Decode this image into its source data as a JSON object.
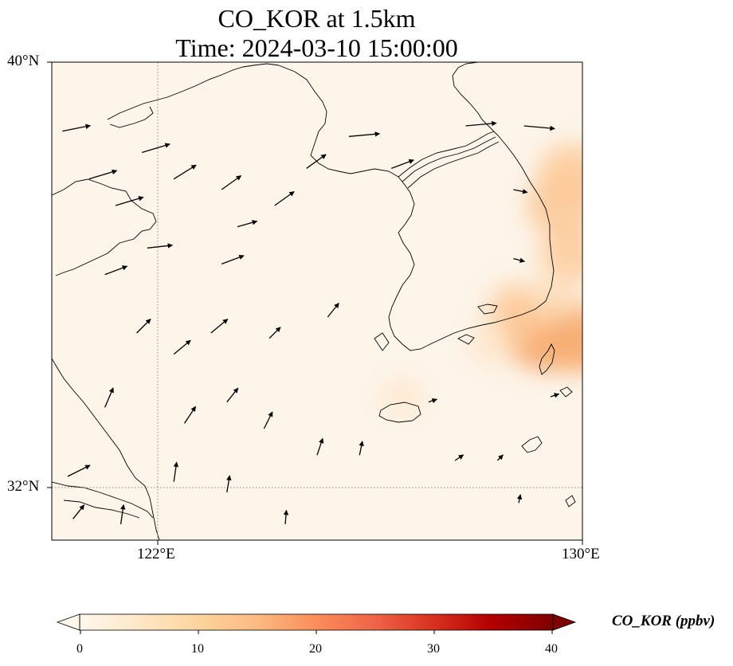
{
  "title": {
    "line1": "CO_KOR at 1.5km",
    "line2": "Time: 2024-03-10 15:00:00"
  },
  "axes": {
    "lat_labels": [
      "40°N",
      "32°N"
    ],
    "lon_labels": [
      "122°E",
      "130°E"
    ],
    "lon_range": [
      120,
      130
    ],
    "lat_range": [
      31,
      40
    ],
    "gridlines": {
      "lons": [
        122,
        130
      ],
      "lats": [
        32,
        40
      ],
      "style": "dotted"
    }
  },
  "colorbar": {
    "title": "CO_KOR (ppbv)",
    "ticks": [
      "0",
      "10",
      "20",
      "30",
      "40"
    ],
    "range": [
      0,
      40
    ],
    "colormap": "OrRd",
    "extend": "both"
  },
  "colors": {
    "background_field": "#fdf5ea",
    "coast": "#000000",
    "plume_light": "#fde2c2",
    "plume_mid": "#fcc896",
    "plume_high": "#f7ae74"
  },
  "chart_data": {
    "type": "map",
    "variable": "CO_KOR",
    "units": "ppbv",
    "level": "1.5km",
    "time": "2024-03-10 15:00:00",
    "plume_cells": [
      {
        "lon": 129.9,
        "lat": 34.8,
        "value": 14
      },
      {
        "lon": 129.3,
        "lat": 34.9,
        "value": 16
      },
      {
        "lon": 128.8,
        "lat": 35.3,
        "value": 10
      },
      {
        "lon": 129.5,
        "lat": 35.6,
        "value": 8
      },
      {
        "lon": 129.8,
        "lat": 36.4,
        "value": 10
      },
      {
        "lon": 129.6,
        "lat": 37.3,
        "value": 12
      },
      {
        "lon": 129.8,
        "lat": 37.9,
        "value": 11
      },
      {
        "lon": 128.3,
        "lat": 34.7,
        "value": 6
      },
      {
        "lon": 126.6,
        "lat": 33.7,
        "value": 4
      }
    ],
    "wind_vectors": [
      {
        "lon": 120.2,
        "lat": 38.7,
        "u": 5,
        "v": 1
      },
      {
        "lon": 120.7,
        "lat": 37.8,
        "u": 5,
        "v": 1.5
      },
      {
        "lon": 121.7,
        "lat": 38.3,
        "u": 5,
        "v": 1.5
      },
      {
        "lon": 122.3,
        "lat": 37.8,
        "u": 4,
        "v": 2.5
      },
      {
        "lon": 121.2,
        "lat": 37.3,
        "u": 5,
        "v": 1.5
      },
      {
        "lon": 121.8,
        "lat": 36.5,
        "u": 4.5,
        "v": 0.5
      },
      {
        "lon": 121.0,
        "lat": 36.0,
        "u": 4,
        "v": 1.5
      },
      {
        "lon": 123.2,
        "lat": 37.6,
        "u": 3.5,
        "v": 2.5
      },
      {
        "lon": 123.5,
        "lat": 36.9,
        "u": 3.5,
        "v": 1
      },
      {
        "lon": 124.2,
        "lat": 37.3,
        "u": 3.5,
        "v": 2.5
      },
      {
        "lon": 123.2,
        "lat": 36.2,
        "u": 4,
        "v": 1.5
      },
      {
        "lon": 124.8,
        "lat": 38.0,
        "u": 3.5,
        "v": 2.5
      },
      {
        "lon": 125.6,
        "lat": 38.6,
        "u": 5.5,
        "v": 0.5
      },
      {
        "lon": 126.4,
        "lat": 38.0,
        "u": 4,
        "v": 1.5
      },
      {
        "lon": 127.8,
        "lat": 38.8,
        "u": 5.5,
        "v": 0.5
      },
      {
        "lon": 128.9,
        "lat": 38.8,
        "u": 5.5,
        "v": -0.5
      },
      {
        "lon": 128.7,
        "lat": 37.6,
        "u": 2.5,
        "v": -0.5
      },
      {
        "lon": 128.7,
        "lat": 36.3,
        "u": 2,
        "v": -0.5
      },
      {
        "lon": 121.6,
        "lat": 34.9,
        "u": 2.5,
        "v": 2.5
      },
      {
        "lon": 122.3,
        "lat": 34.5,
        "u": 3,
        "v": 2.5
      },
      {
        "lon": 123.0,
        "lat": 34.9,
        "u": 3,
        "v": 2.5
      },
      {
        "lon": 124.1,
        "lat": 34.8,
        "u": 2,
        "v": 2
      },
      {
        "lon": 125.2,
        "lat": 35.2,
        "u": 2,
        "v": 2.5
      },
      {
        "lon": 121.0,
        "lat": 33.5,
        "u": 1.5,
        "v": 3.5
      },
      {
        "lon": 122.5,
        "lat": 33.2,
        "u": 2,
        "v": 3
      },
      {
        "lon": 123.3,
        "lat": 33.6,
        "u": 2,
        "v": 2.5
      },
      {
        "lon": 124.0,
        "lat": 33.1,
        "u": 1.5,
        "v": 3
      },
      {
        "lon": 125.0,
        "lat": 32.6,
        "u": 1,
        "v": 3
      },
      {
        "lon": 121.3,
        "lat": 31.3,
        "u": 0.5,
        "v": 3.5
      },
      {
        "lon": 122.3,
        "lat": 32.1,
        "u": 0.5,
        "v": 3.5
      },
      {
        "lon": 123.3,
        "lat": 31.9,
        "u": 0.5,
        "v": 3
      },
      {
        "lon": 124.4,
        "lat": 31.3,
        "u": 0.2,
        "v": 2.5
      },
      {
        "lon": 125.8,
        "lat": 32.6,
        "u": 0.5,
        "v": 2.5
      },
      {
        "lon": 127.1,
        "lat": 33.6,
        "u": 1.5,
        "v": 0.5
      },
      {
        "lon": 127.6,
        "lat": 32.5,
        "u": 1.5,
        "v": 1
      },
      {
        "lon": 128.4,
        "lat": 32.5,
        "u": 1,
        "v": 1
      },
      {
        "lon": 128.8,
        "lat": 31.7,
        "u": 0.3,
        "v": 1.5
      },
      {
        "lon": 120.3,
        "lat": 32.2,
        "u": 4,
        "v": 2
      },
      {
        "lon": 120.4,
        "lat": 31.4,
        "u": 2,
        "v": 2.5
      },
      {
        "lon": 129.4,
        "lat": 33.7,
        "u": 1.5,
        "v": 0.5
      }
    ]
  }
}
